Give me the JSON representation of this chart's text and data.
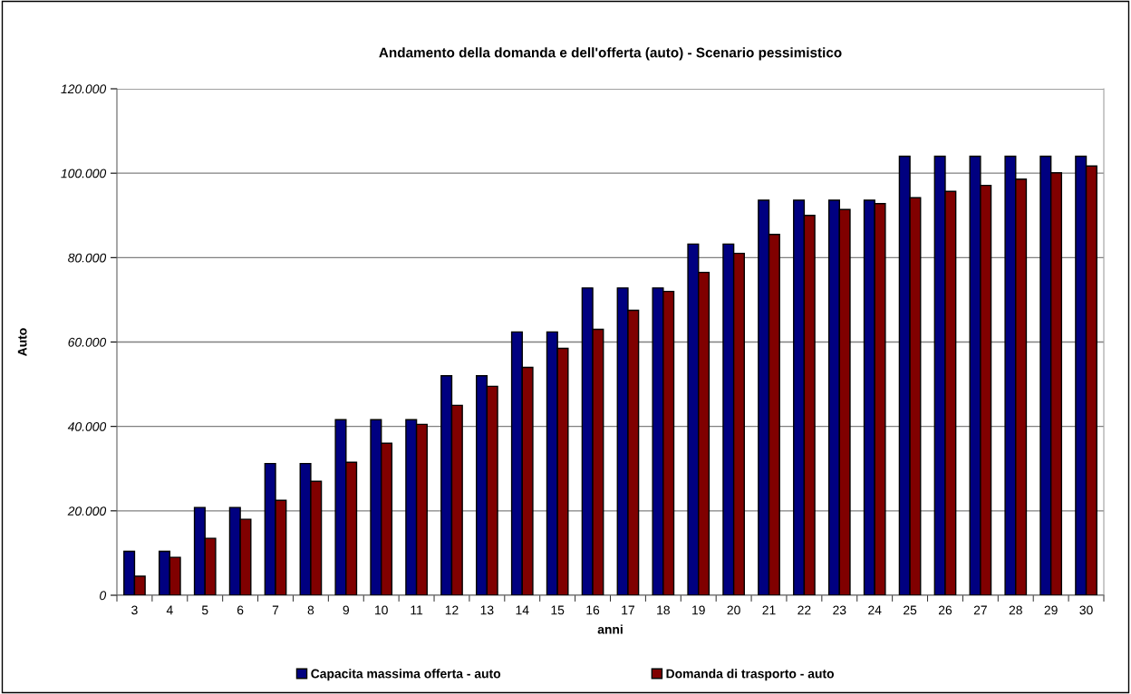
{
  "chart_data": {
    "type": "bar",
    "title": "Andamento della domanda e dell'offerta (auto) - Scenario pessimistico",
    "xlabel": "anni",
    "ylabel": "Auto",
    "categories": [
      "3",
      "4",
      "5",
      "6",
      "7",
      "8",
      "9",
      "10",
      "11",
      "12",
      "13",
      "14",
      "15",
      "16",
      "17",
      "18",
      "19",
      "20",
      "21",
      "22",
      "23",
      "24",
      "25",
      "26",
      "27",
      "28",
      "29",
      "30"
    ],
    "series": [
      {
        "name": "Capacita massima offerta - auto",
        "color": "#000080",
        "values": [
          10400,
          10400,
          20800,
          20800,
          31200,
          31200,
          41600,
          41600,
          41600,
          52000,
          52000,
          62400,
          62400,
          72800,
          72800,
          72800,
          83200,
          83200,
          93600,
          93600,
          93600,
          93600,
          104000,
          104000,
          104000,
          104000,
          104000,
          104000
        ]
      },
      {
        "name": "Domanda di trasporto - auto",
        "color": "#800000",
        "values": [
          4500,
          9000,
          13500,
          18000,
          22500,
          27000,
          31500,
          36000,
          40500,
          45000,
          49500,
          54000,
          58500,
          63000,
          67500,
          72000,
          76500,
          81000,
          85500,
          90000,
          91400,
          92800,
          94200,
          95700,
          97100,
          98600,
          100100,
          101700
        ]
      }
    ],
    "ylim": [
      0,
      120000
    ],
    "yticks": [
      {
        "value": 0,
        "label": "0"
      },
      {
        "value": 20000,
        "label": "20.000"
      },
      {
        "value": 40000,
        "label": "40.000"
      },
      {
        "value": 60000,
        "label": "60.000"
      },
      {
        "value": 80000,
        "label": "80.000"
      },
      {
        "value": 100000,
        "label": "100.000"
      },
      {
        "value": 120000,
        "label": "120.000"
      }
    ],
    "grid": "y",
    "legend": "bottom"
  }
}
